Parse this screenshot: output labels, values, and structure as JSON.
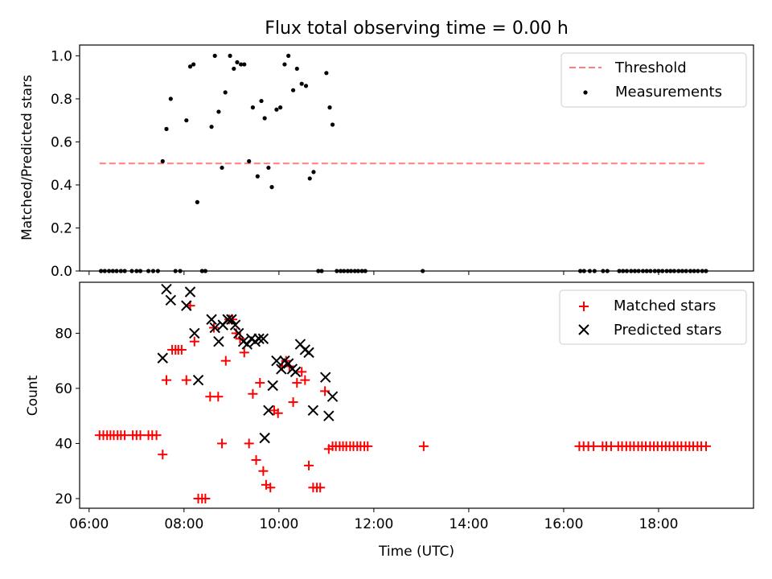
{
  "colors": {
    "threshold": "#ff7f7f",
    "measurements": "#000000",
    "matched": "#ff0000",
    "predicted": "#000000"
  },
  "chart_data": [
    {
      "type": "scatter",
      "title": "Flux total observing time = 0.00 h",
      "xlabel": "",
      "ylabel": "Matched/Predicted stars",
      "x_unit": "hours UTC",
      "xlim": [
        5.8,
        20.0
      ],
      "ylim": [
        0.0,
        1.05
      ],
      "yticks": [
        0.0,
        0.2,
        0.4,
        0.6,
        0.8,
        1.0
      ],
      "yticklabels": [
        "0.0",
        "0.2",
        "0.4",
        "0.6",
        "0.8",
        "1.0"
      ],
      "legend_position": "top-right",
      "legend": [
        {
          "label": "Threshold",
          "marker": "dashed-line"
        },
        {
          "label": "Measurements",
          "marker": "dot"
        }
      ],
      "lines": [
        {
          "name": "Threshold",
          "x": [
            6.22,
            19.03
          ],
          "y": [
            0.5,
            0.5
          ],
          "style": "dashed"
        }
      ],
      "series": [
        {
          "name": "Measurements",
          "marker": "dot",
          "points": [
            [
              6.25,
              0
            ],
            [
              6.33,
              0
            ],
            [
              6.42,
              0
            ],
            [
              6.5,
              0
            ],
            [
              6.58,
              0
            ],
            [
              6.67,
              0
            ],
            [
              6.75,
              0
            ],
            [
              6.9,
              0
            ],
            [
              7.0,
              0
            ],
            [
              7.08,
              0
            ],
            [
              7.25,
              0
            ],
            [
              7.35,
              0
            ],
            [
              7.45,
              0
            ],
            [
              7.55,
              0.51
            ],
            [
              7.63,
              0.66
            ],
            [
              7.72,
              0.8
            ],
            [
              7.82,
              0
            ],
            [
              7.92,
              0
            ],
            [
              8.05,
              0.7
            ],
            [
              8.13,
              0.95
            ],
            [
              8.2,
              0.96
            ],
            [
              8.28,
              0.32
            ],
            [
              8.38,
              0
            ],
            [
              8.45,
              0
            ],
            [
              8.58,
              0.67
            ],
            [
              8.65,
              1.0
            ],
            [
              8.73,
              0.74
            ],
            [
              8.8,
              0.48
            ],
            [
              8.87,
              0.83
            ],
            [
              8.97,
              1.0
            ],
            [
              9.05,
              0.94
            ],
            [
              9.12,
              0.97
            ],
            [
              9.2,
              0.96
            ],
            [
              9.27,
              0.96
            ],
            [
              9.37,
              0.51
            ],
            [
              9.45,
              0.76
            ],
            [
              9.55,
              0.44
            ],
            [
              9.63,
              0.79
            ],
            [
              9.7,
              0.71
            ],
            [
              9.78,
              0.48
            ],
            [
              9.85,
              0.39
            ],
            [
              9.95,
              0.75
            ],
            [
              10.03,
              0.76
            ],
            [
              10.12,
              0.96
            ],
            [
              10.2,
              1.0
            ],
            [
              10.3,
              0.84
            ],
            [
              10.38,
              0.94
            ],
            [
              10.48,
              0.87
            ],
            [
              10.57,
              0.86
            ],
            [
              10.65,
              0.43
            ],
            [
              10.73,
              0.46
            ],
            [
              10.83,
              0
            ],
            [
              10.9,
              0
            ],
            [
              11.0,
              0.92
            ],
            [
              11.07,
              0.76
            ],
            [
              11.13,
              0.68
            ],
            [
              11.22,
              0
            ],
            [
              11.3,
              0
            ],
            [
              11.37,
              0
            ],
            [
              11.45,
              0
            ],
            [
              11.52,
              0
            ],
            [
              11.6,
              0
            ],
            [
              11.67,
              0
            ],
            [
              11.75,
              0
            ],
            [
              11.82,
              0
            ],
            [
              13.03,
              0
            ],
            [
              16.35,
              0
            ],
            [
              16.43,
              0
            ],
            [
              16.55,
              0
            ],
            [
              16.65,
              0
            ],
            [
              16.83,
              0
            ],
            [
              16.92,
              0
            ],
            [
              17.17,
              0
            ],
            [
              17.25,
              0
            ],
            [
              17.33,
              0
            ],
            [
              17.42,
              0
            ],
            [
              17.5,
              0
            ],
            [
              17.58,
              0
            ],
            [
              17.67,
              0
            ],
            [
              17.75,
              0
            ],
            [
              17.83,
              0
            ],
            [
              17.92,
              0
            ],
            [
              18.0,
              0
            ],
            [
              18.08,
              0
            ],
            [
              18.17,
              0
            ],
            [
              18.25,
              0
            ],
            [
              18.33,
              0
            ],
            [
              18.42,
              0
            ],
            [
              18.5,
              0
            ],
            [
              18.58,
              0
            ],
            [
              18.67,
              0
            ],
            [
              18.75,
              0
            ],
            [
              18.83,
              0
            ],
            [
              18.92,
              0
            ],
            [
              19.0,
              0
            ]
          ]
        }
      ]
    },
    {
      "type": "scatter",
      "title": "",
      "xlabel": "Time (UTC)",
      "ylabel": "Count",
      "x_unit": "hours UTC",
      "xlim": [
        5.8,
        20.0
      ],
      "ylim": [
        16.5,
        98.5
      ],
      "xticks": [
        6,
        8,
        10,
        12,
        14,
        16,
        18
      ],
      "xticklabels": [
        "06:00",
        "08:00",
        "10:00",
        "12:00",
        "14:00",
        "16:00",
        "18:00"
      ],
      "yticks": [
        20,
        40,
        60,
        80
      ],
      "yticklabels": [
        "20",
        "40",
        "60",
        "80"
      ],
      "legend_position": "top-right",
      "legend": [
        {
          "label": "Matched stars",
          "marker": "plus"
        },
        {
          "label": "Predicted stars",
          "marker": "x"
        }
      ],
      "series": [
        {
          "name": "Matched stars",
          "marker": "plus",
          "points": [
            [
              6.22,
              43
            ],
            [
              6.3,
              43
            ],
            [
              6.38,
              43
            ],
            [
              6.45,
              43
            ],
            [
              6.52,
              43
            ],
            [
              6.6,
              43
            ],
            [
              6.67,
              43
            ],
            [
              6.75,
              43
            ],
            [
              6.92,
              43
            ],
            [
              7.0,
              43
            ],
            [
              7.08,
              43
            ],
            [
              7.25,
              43
            ],
            [
              7.33,
              43
            ],
            [
              7.42,
              43
            ],
            [
              7.55,
              36
            ],
            [
              7.63,
              63
            ],
            [
              7.75,
              74
            ],
            [
              7.82,
              74
            ],
            [
              7.88,
              74
            ],
            [
              7.95,
              74
            ],
            [
              8.05,
              63
            ],
            [
              8.13,
              90
            ],
            [
              8.22,
              77
            ],
            [
              8.3,
              20
            ],
            [
              8.38,
              20
            ],
            [
              8.45,
              20
            ],
            [
              8.55,
              57
            ],
            [
              8.63,
              82
            ],
            [
              8.72,
              57
            ],
            [
              8.8,
              40
            ],
            [
              8.88,
              70
            ],
            [
              8.95,
              85
            ],
            [
              9.02,
              85
            ],
            [
              9.1,
              80
            ],
            [
              9.18,
              78
            ],
            [
              9.27,
              73
            ],
            [
              9.37,
              40
            ],
            [
              9.45,
              58
            ],
            [
              9.52,
              34
            ],
            [
              9.6,
              62
            ],
            [
              9.67,
              30
            ],
            [
              9.73,
              25
            ],
            [
              9.82,
              24
            ],
            [
              9.9,
              52
            ],
            [
              9.98,
              51
            ],
            [
              10.07,
              68
            ],
            [
              10.15,
              70
            ],
            [
              10.22,
              68
            ],
            [
              10.3,
              55
            ],
            [
              10.38,
              62
            ],
            [
              10.48,
              66
            ],
            [
              10.55,
              63
            ],
            [
              10.63,
              32
            ],
            [
              10.72,
              24
            ],
            [
              10.8,
              24
            ],
            [
              10.87,
              24
            ],
            [
              10.97,
              59
            ],
            [
              11.05,
              38
            ],
            [
              11.13,
              39
            ],
            [
              11.2,
              39
            ],
            [
              11.28,
              39
            ],
            [
              11.35,
              39
            ],
            [
              11.42,
              39
            ],
            [
              11.5,
              39
            ],
            [
              11.57,
              39
            ],
            [
              11.65,
              39
            ],
            [
              11.72,
              39
            ],
            [
              11.8,
              39
            ],
            [
              11.87,
              39
            ],
            [
              13.05,
              39
            ],
            [
              16.33,
              39
            ],
            [
              16.42,
              39
            ],
            [
              16.52,
              39
            ],
            [
              16.63,
              39
            ],
            [
              16.82,
              39
            ],
            [
              16.9,
              39
            ],
            [
              17.0,
              39
            ],
            [
              17.15,
              39
            ],
            [
              17.23,
              39
            ],
            [
              17.32,
              39
            ],
            [
              17.4,
              39
            ],
            [
              17.48,
              39
            ],
            [
              17.57,
              39
            ],
            [
              17.65,
              39
            ],
            [
              17.73,
              39
            ],
            [
              17.82,
              39
            ],
            [
              17.9,
              39
            ],
            [
              17.98,
              39
            ],
            [
              18.07,
              39
            ],
            [
              18.15,
              39
            ],
            [
              18.23,
              39
            ],
            [
              18.32,
              39
            ],
            [
              18.4,
              39
            ],
            [
              18.48,
              39
            ],
            [
              18.57,
              39
            ],
            [
              18.65,
              39
            ],
            [
              18.73,
              39
            ],
            [
              18.82,
              39
            ],
            [
              18.9,
              39
            ],
            [
              19.0,
              39
            ]
          ]
        },
        {
          "name": "Predicted stars",
          "marker": "x",
          "points": [
            [
              7.55,
              71
            ],
            [
              7.63,
              96
            ],
            [
              7.72,
              92
            ],
            [
              8.05,
              90
            ],
            [
              8.13,
              95
            ],
            [
              8.22,
              80
            ],
            [
              8.3,
              63
            ],
            [
              8.58,
              85
            ],
            [
              8.65,
              82
            ],
            [
              8.73,
              77
            ],
            [
              8.82,
              83
            ],
            [
              8.92,
              85
            ],
            [
              9.0,
              85
            ],
            [
              9.08,
              83
            ],
            [
              9.15,
              80
            ],
            [
              9.25,
              77
            ],
            [
              9.33,
              76
            ],
            [
              9.42,
              78
            ],
            [
              9.5,
              77
            ],
            [
              9.58,
              78
            ],
            [
              9.67,
              78
            ],
            [
              9.7,
              42
            ],
            [
              9.78,
              52
            ],
            [
              9.87,
              61
            ],
            [
              9.95,
              70
            ],
            [
              10.05,
              67
            ],
            [
              10.12,
              70
            ],
            [
              10.2,
              69
            ],
            [
              10.28,
              67
            ],
            [
              10.35,
              66
            ],
            [
              10.45,
              76
            ],
            [
              10.55,
              74
            ],
            [
              10.63,
              73
            ],
            [
              10.72,
              52
            ],
            [
              10.98,
              64
            ],
            [
              11.05,
              50
            ],
            [
              11.13,
              57
            ]
          ]
        }
      ]
    }
  ]
}
